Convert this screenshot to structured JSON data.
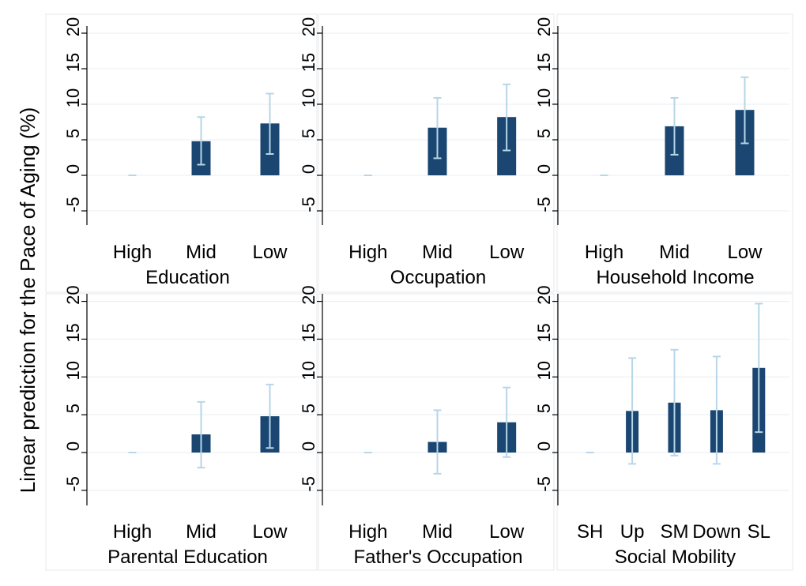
{
  "chart_data": {
    "type": "bar",
    "ylabel": "Linear prediction for the Pace of Aging (%)",
    "ylim": [
      -7,
      21
    ],
    "yticks": [
      -5,
      0,
      5,
      10,
      15,
      20
    ],
    "ytick_labels": [
      "-5",
      "0",
      "5",
      "10",
      "15",
      "20"
    ],
    "grid": true,
    "panels": [
      {
        "xlabel": "Education",
        "categories": [
          "High",
          "Mid",
          "Low"
        ],
        "values": [
          0,
          4.8,
          7.3
        ],
        "ci_low": [
          0,
          1.5,
          3.0
        ],
        "ci_high": [
          0,
          8.2,
          11.5
        ]
      },
      {
        "xlabel": "Occupation",
        "categories": [
          "High",
          "Mid",
          "Low"
        ],
        "values": [
          0,
          6.7,
          8.2
        ],
        "ci_low": [
          0,
          2.4,
          3.5
        ],
        "ci_high": [
          0,
          10.9,
          12.8
        ]
      },
      {
        "xlabel": "Household Income",
        "categories": [
          "High",
          "Mid",
          "Low"
        ],
        "values": [
          0,
          6.9,
          9.2
        ],
        "ci_low": [
          0,
          2.9,
          4.5
        ],
        "ci_high": [
          0,
          10.9,
          13.8
        ]
      },
      {
        "xlabel": "Parental Education",
        "categories": [
          "High",
          "Mid",
          "Low"
        ],
        "values": [
          0,
          2.4,
          4.8
        ],
        "ci_low": [
          0,
          -2.0,
          0.6
        ],
        "ci_high": [
          0,
          6.7,
          9.0
        ]
      },
      {
        "xlabel": "Father's Occupation",
        "categories": [
          "High",
          "Mid",
          "Low"
        ],
        "values": [
          0,
          1.4,
          4.0
        ],
        "ci_low": [
          0,
          -2.8,
          -0.6
        ],
        "ci_high": [
          0,
          5.6,
          8.6
        ]
      },
      {
        "xlabel": "Social Mobility",
        "categories": [
          "SH",
          "Up",
          "SM",
          "Down",
          "SL"
        ],
        "values": [
          0,
          5.5,
          6.6,
          5.6,
          11.2
        ],
        "ci_low": [
          0,
          -1.5,
          -0.4,
          -1.5,
          2.7
        ],
        "ci_high": [
          0,
          12.5,
          13.6,
          12.7,
          19.7
        ]
      }
    ]
  },
  "colors": {
    "bar": "#1a4671",
    "error_bar": "#b7d6e6",
    "grid": "#e8eef3",
    "panel_border": "#e4e9ee",
    "background": "#ffffff"
  }
}
